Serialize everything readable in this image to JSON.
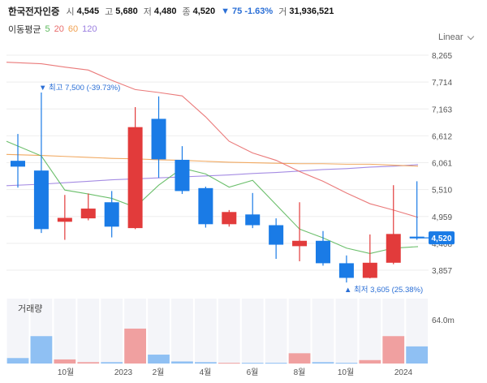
{
  "header": {
    "name": "한국전자인증",
    "open_label": "시",
    "open": "4,545",
    "high_label": "고",
    "high": "5,680",
    "low_label": "저",
    "low": "4,480",
    "close_label": "종",
    "close": "4,520",
    "change": "▼ 75 -1.63%",
    "volume_label": "거",
    "volume": "31,936,521"
  },
  "ma_legend": {
    "label": "이동평균",
    "items": [
      {
        "text": "5",
        "color": "#5bb85b"
      },
      {
        "text": "20",
        "color": "#e86b6b"
      },
      {
        "text": "60",
        "color": "#f0a050"
      },
      {
        "text": "120",
        "color": "#9b7fe0"
      }
    ]
  },
  "scale": "Linear",
  "price_axis": [
    "8,265",
    "7,714",
    "7,163",
    "6,612",
    "6,061",
    "5,510",
    "4,959",
    "4,408",
    "3,857"
  ],
  "current_price_badge": "4,520",
  "annotations": {
    "max_label": "▼ 최고 7,500 (-39.73%)",
    "min_label": "▲ 최저 3,605 (25.38%)"
  },
  "volume_panel": {
    "title": "거래량",
    "axis_label": "64.0m"
  },
  "time_axis": [
    "10월",
    "2023",
    "2월",
    "4월",
    "6월",
    "8월",
    "10월",
    "2024"
  ],
  "colors": {
    "up": "#e23b3b",
    "down": "#1a7be6",
    "up_vol": "#f0a0a0",
    "down_vol": "#8fc0f3"
  },
  "chart_data": {
    "type": "candlestick",
    "scale": "linear",
    "ylim": [
      3700,
      8400
    ],
    "candles": [
      {
        "open": 6100,
        "close": 5980,
        "high": 6650,
        "low": 5550
      },
      {
        "open": 5900,
        "close": 4700,
        "high": 7500,
        "low": 4620
      },
      {
        "open": 4850,
        "close": 4930,
        "high": 5400,
        "low": 4480
      },
      {
        "open": 4920,
        "close": 5120,
        "high": 5430,
        "low": 4880
      },
      {
        "open": 5250,
        "close": 4750,
        "high": 5480,
        "low": 4530
      },
      {
        "open": 4720,
        "close": 6790,
        "high": 7200,
        "low": 4700
      },
      {
        "open": 6960,
        "close": 6130,
        "high": 7420,
        "low": 5750
      },
      {
        "open": 6120,
        "close": 5480,
        "high": 6400,
        "low": 5420
      },
      {
        "open": 5540,
        "close": 4800,
        "high": 5570,
        "low": 4730
      },
      {
        "open": 4800,
        "close": 5050,
        "high": 5090,
        "low": 4750
      },
      {
        "open": 5000,
        "close": 4780,
        "high": 5440,
        "low": 4720
      },
      {
        "open": 4780,
        "close": 4380,
        "high": 4920,
        "low": 4090
      },
      {
        "open": 4350,
        "close": 4460,
        "high": 5250,
        "low": 4040
      },
      {
        "open": 4460,
        "close": 4000,
        "high": 4660,
        "low": 3950
      },
      {
        "open": 4000,
        "close": 3700,
        "high": 4160,
        "low": 3605
      },
      {
        "open": 3700,
        "close": 4010,
        "high": 4590,
        "low": 3690
      },
      {
        "open": 4010,
        "close": 4600,
        "high": 5600,
        "low": 3980
      },
      {
        "open": 4545,
        "close": 4520,
        "high": 5680,
        "low": 4480
      }
    ],
    "volume": [
      8,
      40,
      6,
      2,
      2,
      51,
      13,
      3,
      2,
      1,
      1,
      1,
      15,
      2,
      1,
      5,
      40,
      25
    ],
    "ma5": [
      6500,
      6200,
      5500,
      5420,
      5330,
      5150,
      5600,
      5950,
      5830,
      5560,
      5700,
      5200,
      4700,
      4520,
      4310,
      4200,
      4310,
      4340
    ],
    "ma20": [
      8120,
      8090,
      8020,
      7960,
      7750,
      7560,
      7500,
      7430,
      7000,
      6500,
      6260,
      6110,
      5880,
      5680,
      5440,
      5220,
      5090,
      4940
    ],
    "ma60": [
      6230,
      6210,
      6190,
      6170,
      6150,
      6140,
      6120,
      6110,
      6090,
      6070,
      6060,
      6050,
      6040,
      6040,
      6030,
      6030,
      6010,
      5990
    ],
    "ma120": [
      5590,
      5620,
      5650,
      5680,
      5710,
      5730,
      5750,
      5770,
      5790,
      5810,
      5840,
      5860,
      5890,
      5920,
      5940,
      5970,
      5990,
      6020
    ]
  }
}
